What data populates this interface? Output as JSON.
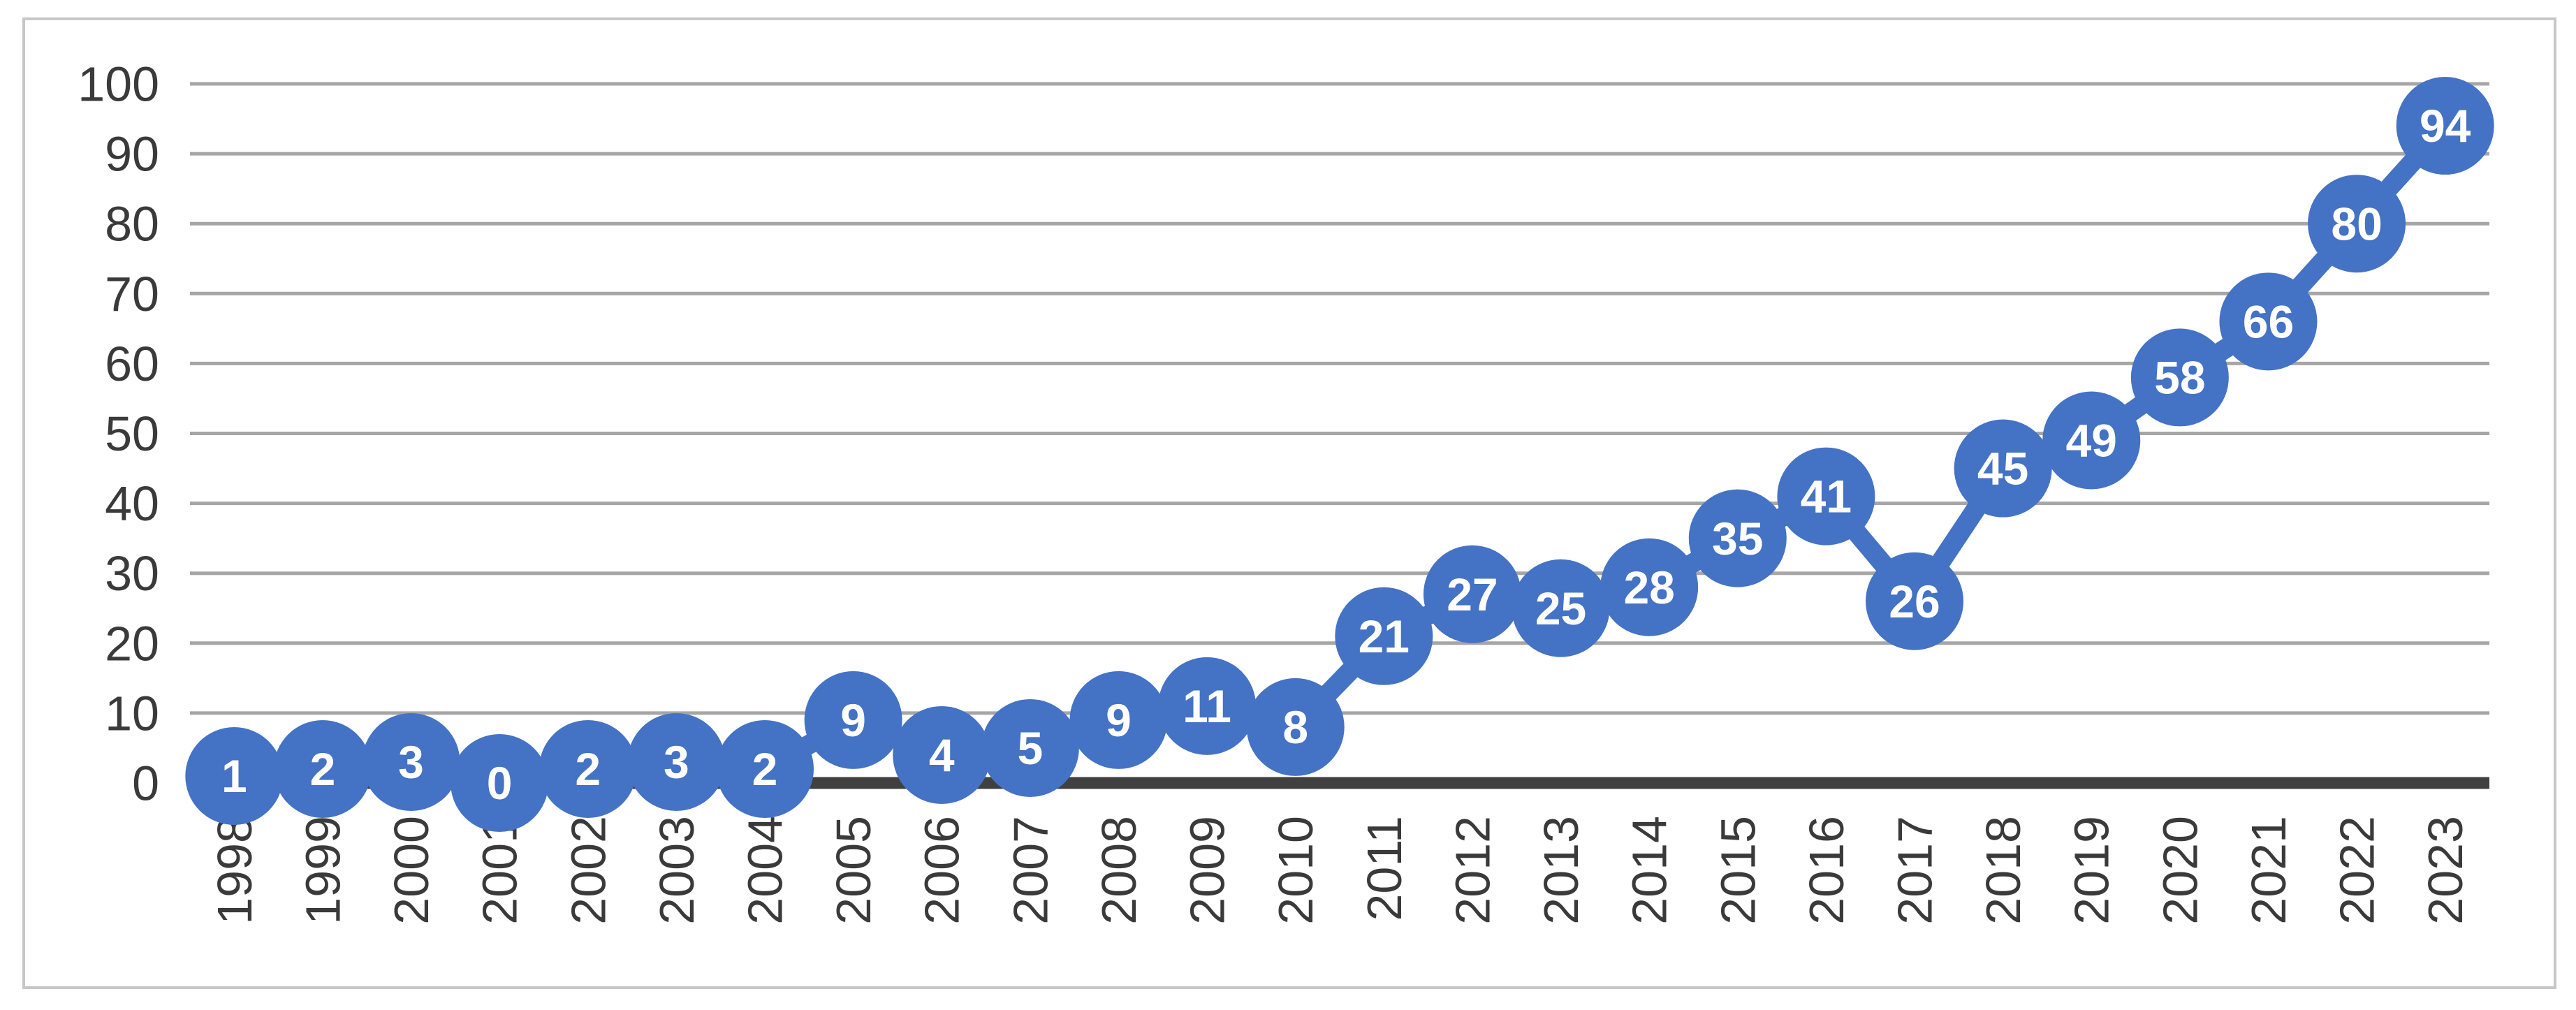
{
  "chart": {
    "background_color": "#ffffff",
    "frame_border_color": "#c8c6c6"
  },
  "chart_data": {
    "type": "line",
    "title": "",
    "xlabel": "",
    "ylabel": "",
    "categories": [
      "1998",
      "1999",
      "2000",
      "2001",
      "2002",
      "2003",
      "2004",
      "2005",
      "2006",
      "2007",
      "2008",
      "2009",
      "2010",
      "2011",
      "2012",
      "2013",
      "2014",
      "2015",
      "2016",
      "2017",
      "2018",
      "2019",
      "2020",
      "2021",
      "2022",
      "2023"
    ],
    "values": [
      1,
      2,
      3,
      0,
      2,
      3,
      2,
      9,
      4,
      5,
      9,
      11,
      8,
      21,
      27,
      25,
      28,
      35,
      41,
      26,
      45,
      49,
      58,
      66,
      80,
      94
    ],
    "data_labels": true,
    "ylim": [
      0,
      100
    ],
    "yticks": [
      0,
      10,
      20,
      30,
      40,
      50,
      60,
      70,
      80,
      90,
      100
    ],
    "grid": true,
    "legend": "none",
    "x_label_rotation_deg": -90,
    "colors": {
      "marker_fill": "#4472c4",
      "line_stroke": "#4472c4",
      "data_label_text": "#ffffff",
      "gridline": "#a6a6a6",
      "x_axis_line": "#404040",
      "axis_tick_text": "#3a3a3a"
    }
  }
}
